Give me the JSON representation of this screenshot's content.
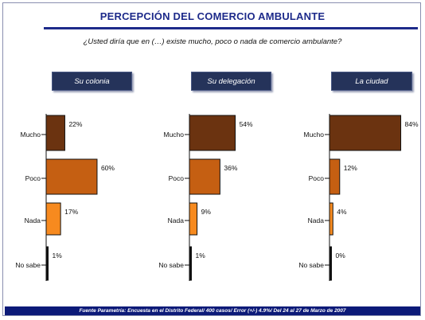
{
  "title": "PERCEPCIÓN DEL COMERCIO AMBULANTE",
  "question": "¿Usted diría que en (…) existe mucho, poco o nada de comercio ambulante?",
  "footer": "Fuente Parametría: Encuesta en el Distrito Federal/ 400 casos/ Error (+/-) 4.9%/ Del 24 al 27 de Marzo de 2007",
  "colors": {
    "mucho": "#6b3310",
    "poco": "#c55f12",
    "nada": "#f78a1f",
    "no_sabe": "#111111",
    "header_bg": "#25335a",
    "title": "#1d2a8a",
    "footer_bg": "#0c1a78"
  },
  "chart_data": [
    {
      "type": "bar",
      "orientation": "horizontal",
      "title": "Su colonia",
      "categories": [
        "Mucho",
        "Poco",
        "Nada",
        "No sabe"
      ],
      "values": [
        22,
        60,
        17,
        1
      ],
      "labels": [
        "22%",
        "60%",
        "17%",
        "1%"
      ],
      "unit": "%"
    },
    {
      "type": "bar",
      "orientation": "horizontal",
      "title": "Su delegación",
      "categories": [
        "Mucho",
        "Poco",
        "Nada",
        "No sabe"
      ],
      "values": [
        54,
        36,
        9,
        1
      ],
      "labels": [
        "54%",
        "36%",
        "9%",
        "1%"
      ],
      "unit": "%"
    },
    {
      "type": "bar",
      "orientation": "horizontal",
      "title": "La ciudad",
      "categories": [
        "Mucho",
        "Poco",
        "Nada",
        "No sabe"
      ],
      "values": [
        84,
        12,
        4,
        0
      ],
      "labels": [
        "84%",
        "12%",
        "4%",
        "0%"
      ],
      "unit": "%"
    }
  ]
}
